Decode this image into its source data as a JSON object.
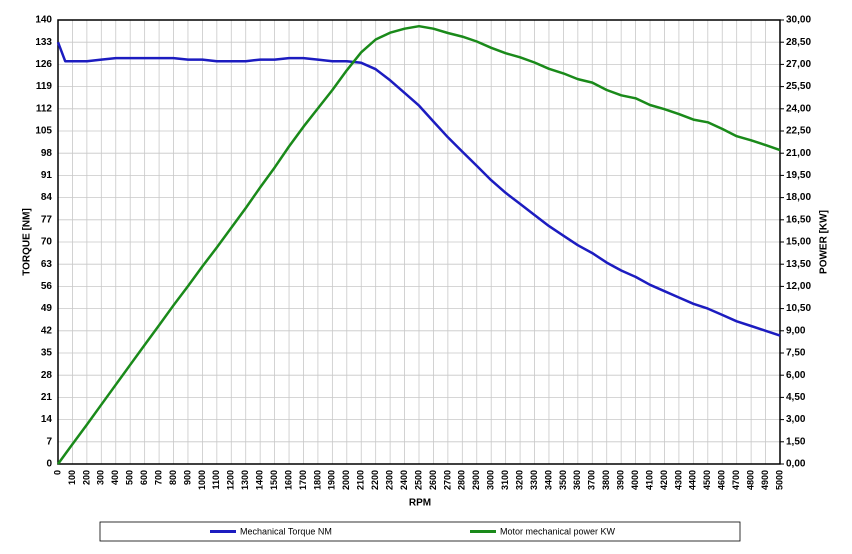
{
  "chart_data": {
    "type": "line",
    "x_label": "RPM",
    "y_label": "TORQUE  [NM]",
    "y2_label": "POWER  [KW]",
    "x": [
      0,
      50,
      100,
      200,
      300,
      400,
      500,
      600,
      700,
      800,
      900,
      1000,
      1100,
      1200,
      1300,
      1400,
      1500,
      1600,
      1700,
      1800,
      1900,
      2000,
      2100,
      2200,
      2300,
      2400,
      2500,
      2600,
      2700,
      2800,
      2900,
      3000,
      3100,
      3200,
      3300,
      3400,
      3500,
      3600,
      3700,
      3800,
      3900,
      4000,
      4100,
      4200,
      4300,
      4400,
      4500,
      4600,
      4700,
      4800,
      4900,
      5000
    ],
    "series": [
      {
        "name": "Mechanical Torque   NM",
        "color": "#1c1cc0",
        "values": [
          133,
          127,
          127,
          127,
          127.5,
          128,
          128,
          128,
          128,
          128,
          127.5,
          127.5,
          127,
          127,
          127,
          127.5,
          127.5,
          128,
          128,
          127.5,
          127,
          127,
          126.5,
          124.5,
          121,
          117,
          113,
          108,
          103,
          98.5,
          94,
          89.5,
          85.5,
          82,
          78.5,
          75,
          72,
          69,
          66.5,
          63.5,
          61,
          59,
          56.5,
          54.5,
          52.5,
          50.5,
          49,
          47,
          45,
          43.5,
          42,
          40.5
        ]
      },
      {
        "name": "Motor mechanical power KW",
        "color": "#1a8a1a",
        "axis": "y2",
        "values": [
          0,
          0.67,
          1.33,
          2.66,
          4.01,
          5.36,
          6.7,
          8.04,
          9.38,
          10.72,
          12.02,
          13.35,
          14.63,
          15.96,
          17.29,
          18.69,
          20.03,
          21.45,
          22.79,
          24.03,
          25.27,
          26.6,
          27.82,
          28.68,
          29.14,
          29.41,
          29.58,
          29.41,
          29.12,
          28.88,
          28.55,
          28.12,
          27.76,
          27.48,
          27.13,
          26.7,
          26.39,
          26.01,
          25.77,
          25.27,
          24.91,
          24.71,
          24.26,
          23.97,
          23.64,
          23.27,
          23.09,
          22.64,
          22.15,
          21.87,
          21.55,
          21.21
        ]
      }
    ],
    "xlim": [
      0,
      5000
    ],
    "xticks": [
      0,
      100,
      200,
      300,
      400,
      500,
      600,
      700,
      800,
      900,
      1000,
      1100,
      1200,
      1300,
      1400,
      1500,
      1600,
      1700,
      1800,
      1900,
      2000,
      2100,
      2200,
      2300,
      2400,
      2500,
      2600,
      2700,
      2800,
      2900,
      3000,
      3100,
      3200,
      3300,
      3400,
      3500,
      3600,
      3700,
      3800,
      3900,
      4000,
      4100,
      4200,
      4300,
      4400,
      4500,
      4600,
      4700,
      4800,
      4900,
      5000
    ],
    "ylim": [
      0,
      140
    ],
    "yticks": [
      0,
      7,
      14,
      21,
      28,
      35,
      42,
      49,
      56,
      63,
      70,
      77,
      84,
      91,
      98,
      105,
      112,
      119,
      126,
      133,
      140
    ],
    "y2lim": [
      0,
      30
    ],
    "y2ticks": [
      {
        "value": 0,
        "label": "0,00"
      },
      {
        "value": 1.5,
        "label": "1,50"
      },
      {
        "value": 3,
        "label": "3,00"
      },
      {
        "value": 4.5,
        "label": "4,50"
      },
      {
        "value": 6,
        "label": "6,00"
      },
      {
        "value": 7.5,
        "label": "7,50"
      },
      {
        "value": 9,
        "label": "9,00"
      },
      {
        "value": 10.5,
        "label": "10,50"
      },
      {
        "value": 12,
        "label": "12,00"
      },
      {
        "value": 13.5,
        "label": "13,50"
      },
      {
        "value": 15,
        "label": "15,00"
      },
      {
        "value": 16.5,
        "label": "16,50"
      },
      {
        "value": 18,
        "label": "18,00"
      },
      {
        "value": 19.5,
        "label": "19,50"
      },
      {
        "value": 21,
        "label": "21,00"
      },
      {
        "value": 22.5,
        "label": "22,50"
      },
      {
        "value": 24,
        "label": "24,00"
      },
      {
        "value": 25.5,
        "label": "25,50"
      },
      {
        "value": 27,
        "label": "27,00"
      },
      {
        "value": 28.5,
        "label": "28,50"
      },
      {
        "value": 30,
        "label": "30,00"
      }
    ],
    "grid": true,
    "legend": "bottom"
  }
}
